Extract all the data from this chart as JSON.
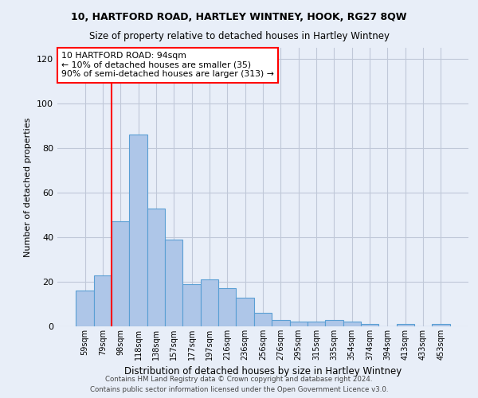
{
  "title1": "10, HARTFORD ROAD, HARTLEY WINTNEY, HOOK, RG27 8QW",
  "title2": "Size of property relative to detached houses in Hartley Wintney",
  "xlabel": "Distribution of detached houses by size in Hartley Wintney",
  "ylabel": "Number of detached properties",
  "footer1": "Contains HM Land Registry data © Crown copyright and database right 2024.",
  "footer2": "Contains public sector information licensed under the Open Government Licence v3.0.",
  "categories": [
    "59sqm",
    "79sqm",
    "98sqm",
    "118sqm",
    "138sqm",
    "157sqm",
    "177sqm",
    "197sqm",
    "216sqm",
    "236sqm",
    "256sqm",
    "276sqm",
    "295sqm",
    "315sqm",
    "335sqm",
    "354sqm",
    "374sqm",
    "394sqm",
    "413sqm",
    "433sqm",
    "453sqm"
  ],
  "values": [
    16,
    23,
    47,
    86,
    53,
    39,
    19,
    21,
    17,
    13,
    6,
    3,
    2,
    2,
    3,
    2,
    1,
    0,
    1,
    0,
    1
  ],
  "bar_color": "#aec6e8",
  "bar_edge_color": "#5a9fd4",
  "vline_x": 1.5,
  "vline_color": "red",
  "annotation_text": "10 HARTFORD ROAD: 94sqm\n← 10% of detached houses are smaller (35)\n90% of semi-detached houses are larger (313) →",
  "annotation_box_color": "white",
  "annotation_box_edge": "red",
  "ylim": [
    0,
    125
  ],
  "yticks": [
    0,
    20,
    40,
    60,
    80,
    100,
    120
  ],
  "grid_color": "#c0c8d8",
  "bg_color": "#e8eef8",
  "plot_bg_color": "#e8eef8"
}
